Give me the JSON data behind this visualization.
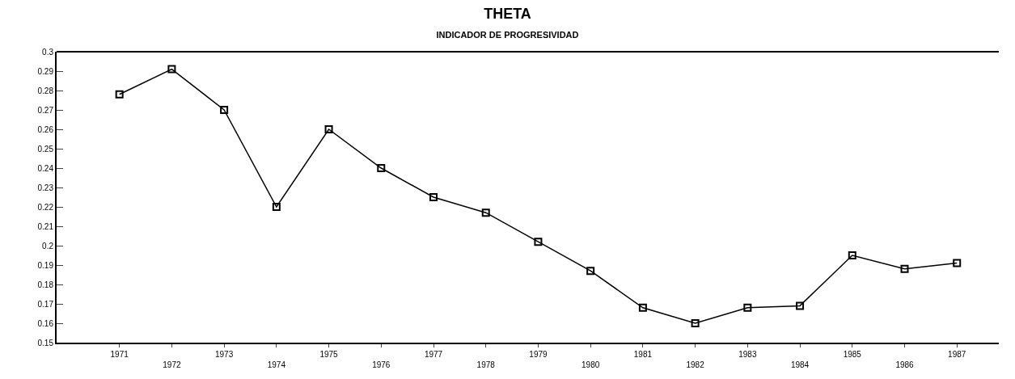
{
  "chart_data": {
    "type": "line",
    "title": "THETA",
    "subtitle": "INDICADOR DE PROGRESIVIDAD",
    "categories": [
      "1971",
      "1972",
      "1973",
      "1974",
      "1975",
      "1976",
      "1977",
      "1978",
      "1979",
      "1980",
      "1981",
      "1982",
      "1983",
      "1984",
      "1985",
      "1986",
      "1987"
    ],
    "series": [
      {
        "color": "#000000",
        "values": [
          0.278,
          0.291,
          0.27,
          0.22,
          0.26,
          0.24,
          0.225,
          0.217,
          0.202,
          0.187,
          0.168,
          0.16,
          0.168,
          0.169,
          0.195,
          0.188,
          0.191
        ]
      }
    ],
    "ylim": [
      0.15,
      0.3
    ],
    "yticks": [
      0.15,
      0.16,
      0.17,
      0.18,
      0.19,
      0.2,
      0.21,
      0.22,
      0.23,
      0.24,
      0.25,
      0.26,
      0.27,
      0.28,
      0.29,
      0.3
    ],
    "marker": "square",
    "line_style": "solid"
  }
}
